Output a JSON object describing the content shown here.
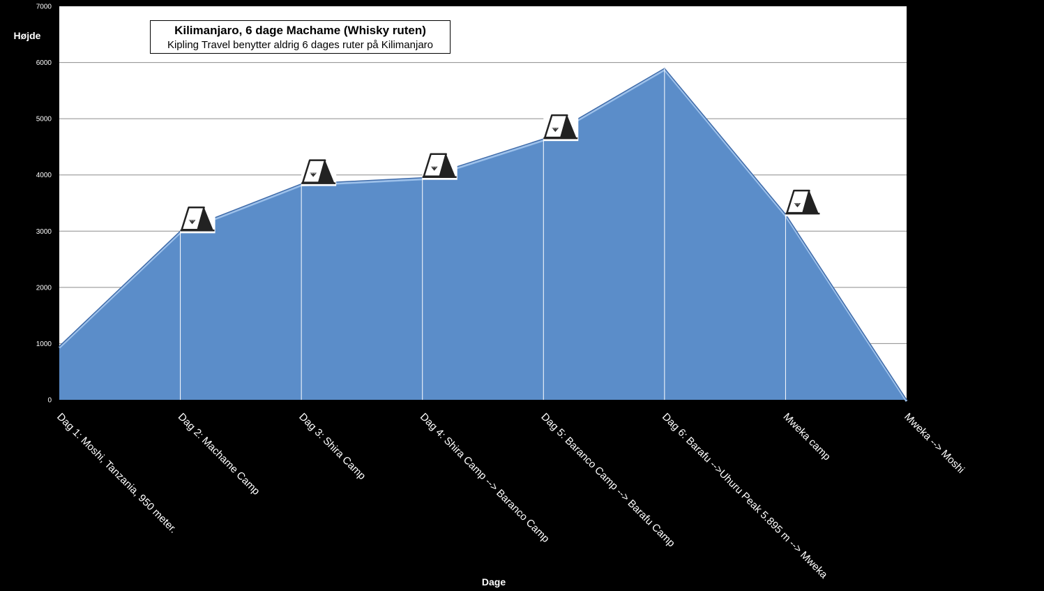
{
  "chart_data": {
    "type": "area",
    "title": "Kilimanjaro, 6 dage Machame (Whisky ruten)",
    "subtitle": "Kipling Travel benytter aldrig 6 dages ruter på Kilimanjaro",
    "xlabel": "Dage",
    "ylabel": "Højde",
    "ylim": [
      0,
      7000
    ],
    "yticks": [
      0,
      1000,
      2000,
      3000,
      4000,
      5000,
      6000,
      7000
    ],
    "grid": true,
    "categories": [
      "Dag 1: Moshi, Tanzania, 950 meter.",
      "Dag 2: Machame Camp",
      "Dag 3: Shira Camp",
      "Dag 4: Shira Camp --> Baranco Camp",
      "Dag 5: Baranco Camp --> Barafu Camp",
      "Dag 6: Barafu -->Uhuru Peak 5.895 m --> Mweka",
      "Mweka camp",
      "Mweka --> Moshi"
    ],
    "series": [
      {
        "values": [
          950,
          3000,
          3840,
          3950,
          4640,
          5895,
          3300,
          0
        ]
      }
    ],
    "camp_markers": [
      1,
      2,
      3,
      4,
      6
    ],
    "colors": {
      "fill": "#5b8dc9",
      "edge": "#3e6aa8",
      "highlight": "#9cc0ea",
      "background": "#ffffff",
      "grid": "#8c8c8c"
    }
  }
}
